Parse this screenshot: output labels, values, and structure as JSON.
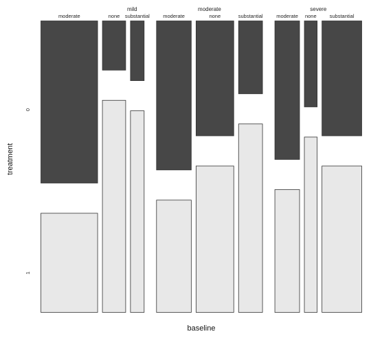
{
  "chart_data": {
    "type": "mosaic",
    "xlabel": "baseline",
    "ylabel": "treatment",
    "y_levels": [
      "0",
      "1"
    ],
    "colors": {
      "0": "#474747",
      "1": "#e8e8e8"
    },
    "groups": [
      {
        "name": "mild",
        "share": 0.35,
        "cells": [
          {
            "name": "moderate",
            "share": 0.6,
            "p0": 0.62
          },
          {
            "name": "none",
            "share": 0.25,
            "p0": 0.19
          },
          {
            "name": "substantial",
            "share": 0.15,
            "p0": 0.23
          }
        ]
      },
      {
        "name": "moderate",
        "share": 0.36,
        "cells": [
          {
            "name": "moderate",
            "share": 0.36,
            "p0": 0.57
          },
          {
            "name": "none",
            "share": 0.39,
            "p0": 0.44
          },
          {
            "name": "substantial",
            "share": 0.25,
            "p0": 0.28
          }
        ]
      },
      {
        "name": "severe",
        "share": 0.29,
        "cells": [
          {
            "name": "moderate",
            "share": 0.32,
            "p0": 0.53
          },
          {
            "name": "none",
            "share": 0.17,
            "p0": 0.33
          },
          {
            "name": "substantial",
            "share": 0.51,
            "p0": 0.44
          }
        ]
      }
    ]
  }
}
